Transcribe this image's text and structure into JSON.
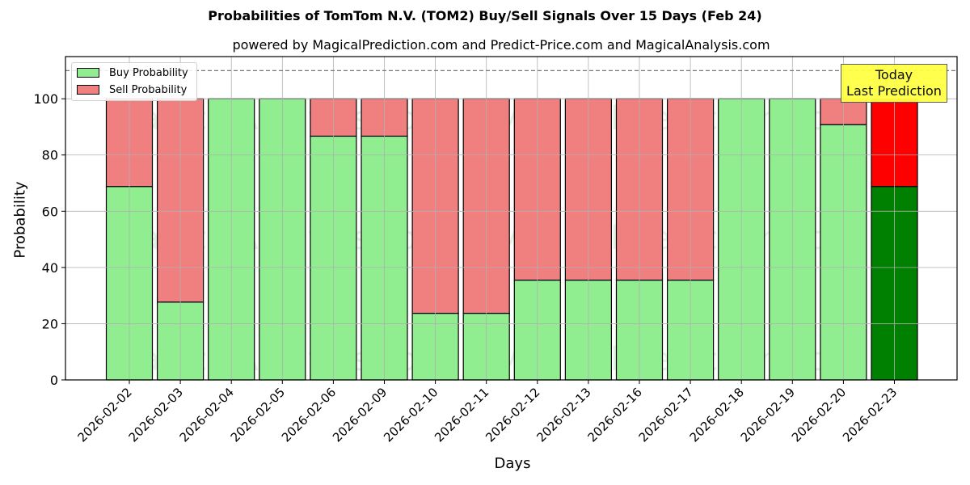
{
  "header": {
    "title": "Probabilities of TomTom N.V. (TOM2) Buy/Sell Signals Over 15 Days (Feb 24)",
    "subtitle": "powered by MagicalPrediction.com and Predict-Price.com and MagicalAnalysis.com"
  },
  "legend": {
    "buy_label": "Buy Probability",
    "sell_label": "Sell Probability"
  },
  "annotation": {
    "line1": "Today",
    "line2": "Last Prediction"
  },
  "axes": {
    "xlabel": "Days",
    "ylabel": "Probability"
  },
  "watermarks": [
    "MagicalAnalysis.com",
    "MagicalPrediction.com"
  ],
  "colors": {
    "buy": "#90ee90",
    "sell": "#f08080",
    "today_buy": "#008000",
    "today_sell": "#ff0000",
    "annotation_bg": "#ffff44",
    "grid": "#b0b0b0"
  },
  "chart_data": {
    "type": "bar",
    "stacked": true,
    "title": "Probabilities of TomTom N.V. (TOM2) Buy/Sell Signals Over 15 Days (Feb 24)",
    "subtitle": "powered by MagicalPrediction.com and Predict-Price.com and MagicalAnalysis.com",
    "xlabel": "Days",
    "ylabel": "Probability",
    "ylim": [
      0,
      115
    ],
    "yticks": [
      0,
      20,
      40,
      60,
      80,
      100
    ],
    "reference_line": 110,
    "grid": true,
    "legend_position": "upper left",
    "categories": [
      "2026-02-02",
      "2026-02-03",
      "2026-02-04",
      "2026-02-05",
      "2026-02-06",
      "2026-02-09",
      "2026-02-10",
      "2026-02-11",
      "2026-02-12",
      "2026-02-13",
      "2026-02-16",
      "2026-02-17",
      "2026-02-18",
      "2026-02-19",
      "2026-02-20",
      "2026-02-23"
    ],
    "series": [
      {
        "name": "Buy Probability",
        "values": [
          68.8,
          27.7,
          100,
          100,
          86.7,
          86.7,
          23.7,
          23.7,
          35.5,
          35.5,
          35.5,
          35.5,
          100,
          100,
          90.8,
          68.8
        ]
      },
      {
        "name": "Sell Probability",
        "values": [
          31.2,
          72.3,
          0,
          0,
          13.3,
          13.3,
          76.3,
          76.3,
          64.5,
          64.5,
          64.5,
          64.5,
          0,
          0,
          9.2,
          31.2
        ]
      }
    ],
    "annotations": [
      {
        "text": "Today\nLast Prediction",
        "category": "2026-02-23"
      }
    ]
  }
}
